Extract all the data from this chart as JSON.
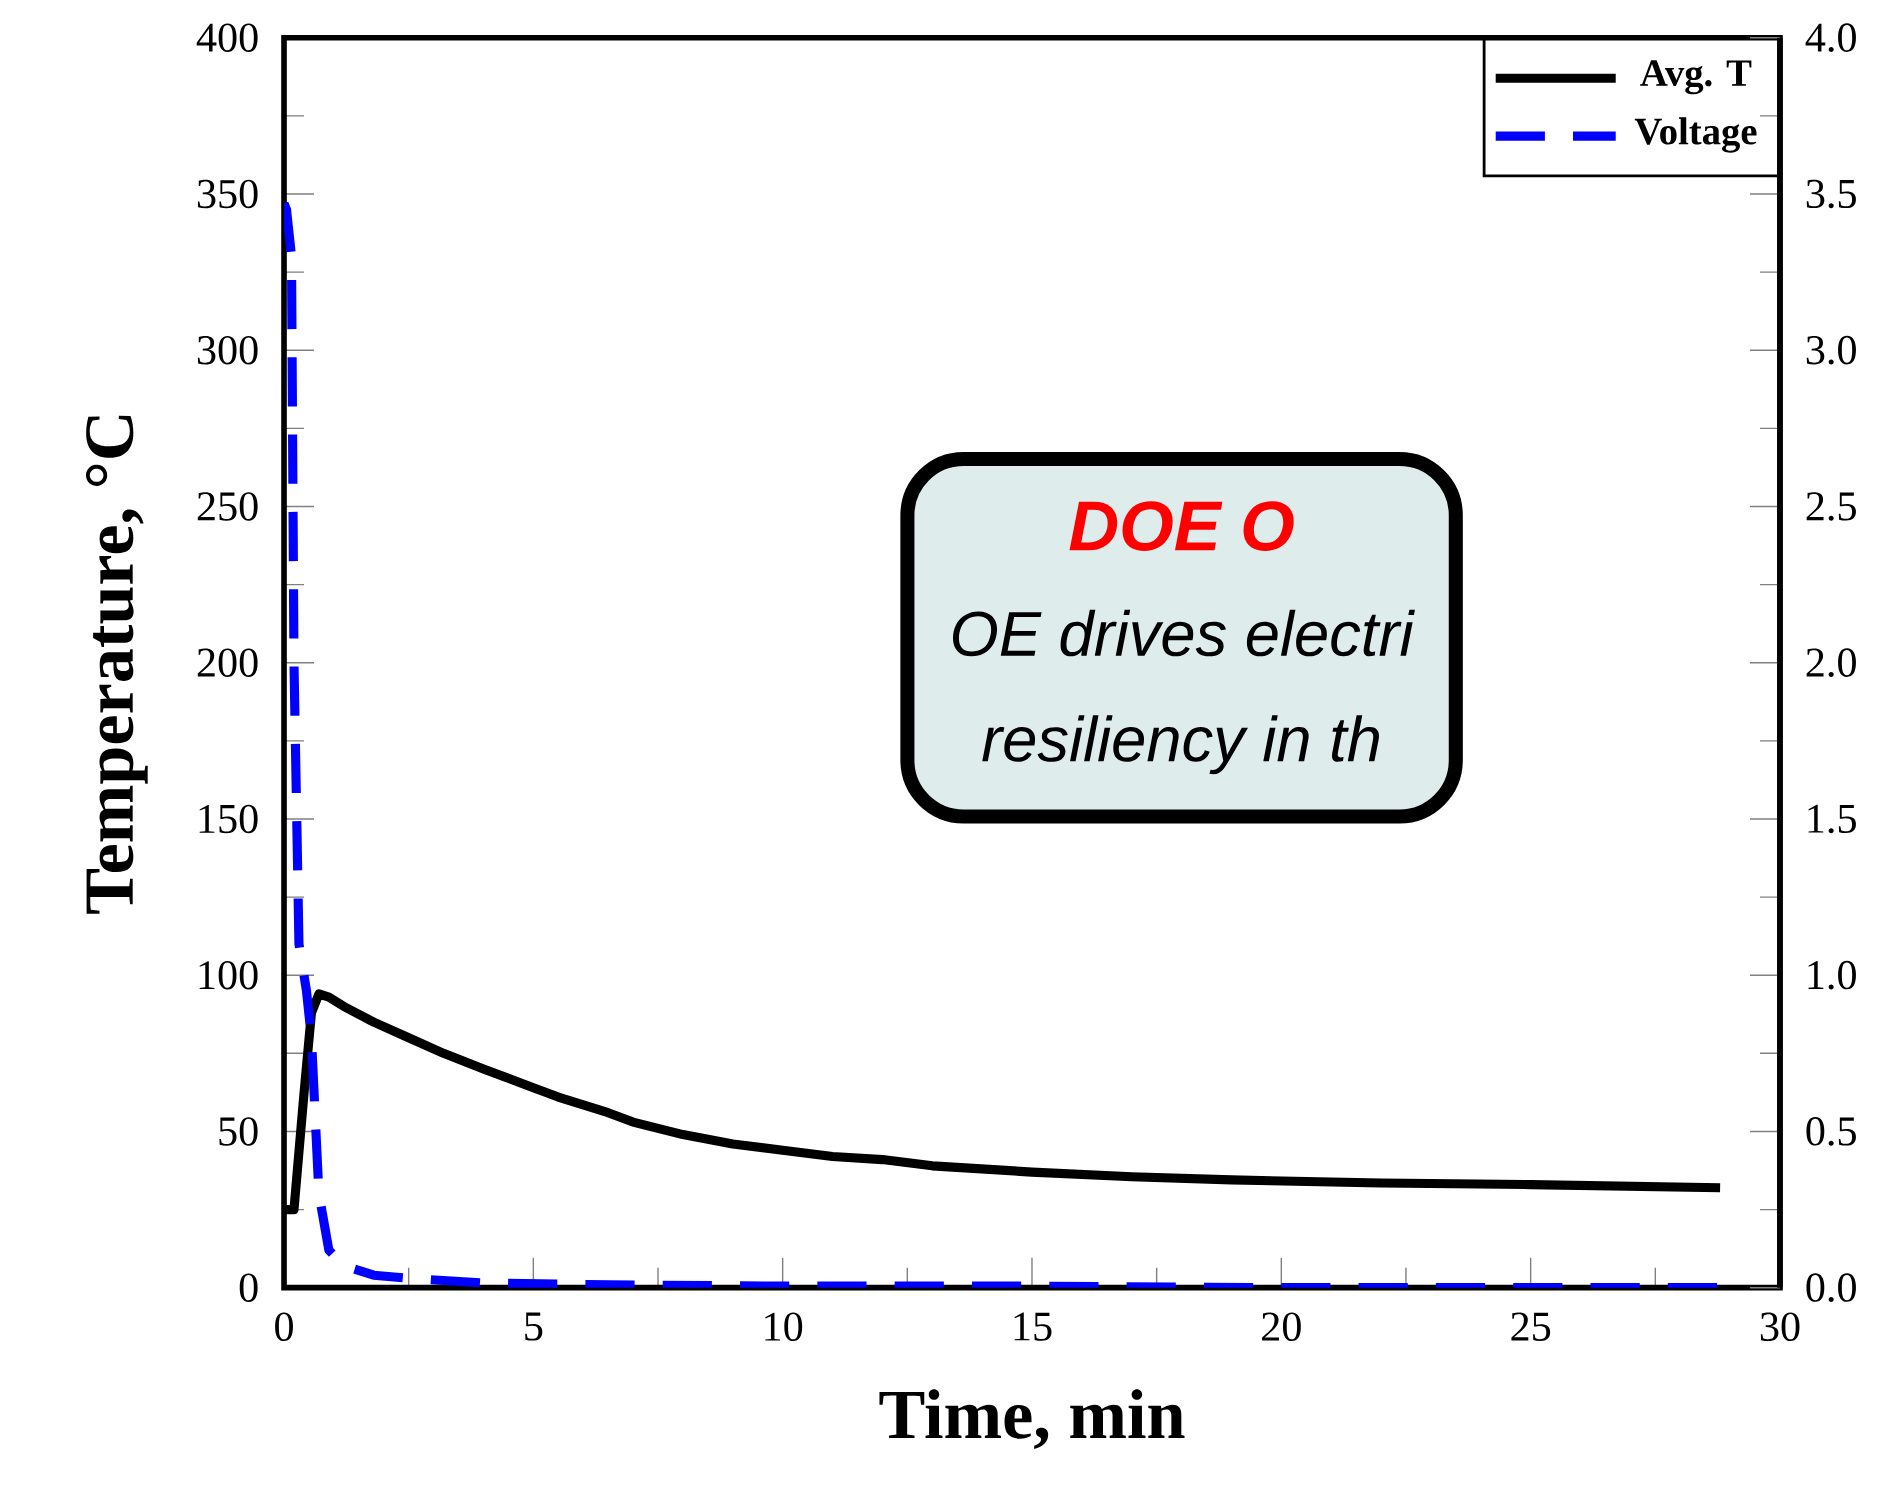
{
  "chart_data": {
    "type": "line",
    "xlabel": "Time, min",
    "ylabel": "Temperature, °C",
    "xlim": [
      0,
      30
    ],
    "xticks": [
      0,
      5,
      10,
      15,
      20,
      25,
      30
    ],
    "ylim": [
      0,
      400
    ],
    "yticks": [
      0,
      50,
      100,
      150,
      200,
      250,
      300,
      350,
      400
    ],
    "y2lim": [
      0,
      4
    ],
    "y2ticks": [
      {
        "value": 0,
        "label": "0.0"
      },
      {
        "value": 0.5,
        "label": "0.5"
      },
      {
        "value": 1,
        "label": "1.0"
      },
      {
        "value": 1.5,
        "label": "1.5"
      },
      {
        "value": 2,
        "label": "2.0"
      },
      {
        "value": 2.5,
        "label": "2.5"
      },
      {
        "value": 3,
        "label": "3.0"
      },
      {
        "value": 3.5,
        "label": "3.5"
      },
      {
        "value": 4,
        "label": "4.0"
      }
    ],
    "legend": "top right",
    "grid": false,
    "marker": "none",
    "annotations": [
      "DOE O",
      "OE drives electri",
      "resiliency in th"
    ],
    "series": [
      {
        "name": "Avg. T",
        "color": "#000000",
        "line_style": "solid",
        "x": [
          0,
          0.2,
          0.4,
          0.55,
          0.7,
          0.9,
          1.2,
          1.8,
          2.5,
          3.2,
          4,
          5,
          5.5,
          6.5,
          7,
          8,
          9,
          10,
          11,
          12,
          13,
          15,
          17,
          19,
          22,
          25,
          28.8
        ],
        "values": [
          25,
          25,
          62,
          88,
          94,
          93,
          90,
          85,
          80,
          75,
          70,
          64,
          61,
          56,
          53,
          49,
          46,
          44,
          42,
          41,
          39,
          37,
          35.5,
          34.5,
          33.5,
          33,
          32
        ]
      },
      {
        "name": "Voltage",
        "color": "#0000ff",
        "line_style": "dashed",
        "axis": "y2",
        "x": [
          0,
          0.05,
          0.15,
          0.2,
          0.3,
          0.45,
          0.55,
          0.7,
          0.9,
          1.2,
          1.8,
          2.5,
          4,
          6,
          10,
          15,
          20,
          25,
          28.8
        ],
        "values": [
          3.47,
          3.45,
          3.3,
          2.0,
          1.1,
          0.95,
          0.8,
          0.3,
          0.12,
          0.07,
          0.04,
          0.03,
          0.015,
          0.01,
          0.005,
          0.005,
          0,
          0,
          0
        ]
      }
    ]
  }
}
